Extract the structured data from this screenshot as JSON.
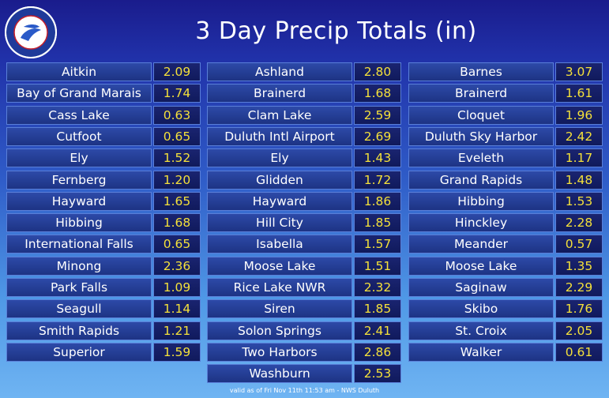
{
  "header": {
    "title": "3 Day Precip Totals (in)",
    "logo_text": "NATIONAL WEATHER SERVICE"
  },
  "columns": [
    [
      {
        "name": "Aitkin",
        "value": "2.09"
      },
      {
        "name": "Bay of Grand Marais",
        "value": "1.74"
      },
      {
        "name": "Cass Lake",
        "value": "0.63"
      },
      {
        "name": "Cutfoot",
        "value": "0.65"
      },
      {
        "name": "Ely",
        "value": "1.52"
      },
      {
        "name": "Fernberg",
        "value": "1.20"
      },
      {
        "name": "Hayward",
        "value": "1.65"
      },
      {
        "name": "Hibbing",
        "value": "1.68"
      },
      {
        "name": "International Falls",
        "value": "0.65"
      },
      {
        "name": "Minong",
        "value": "2.36"
      },
      {
        "name": "Park Falls",
        "value": "1.09"
      },
      {
        "name": "Seagull",
        "value": "1.14"
      },
      {
        "name": "Smith Rapids",
        "value": "1.21"
      },
      {
        "name": "Superior",
        "value": "1.59"
      }
    ],
    [
      {
        "name": "Ashland",
        "value": "2.80"
      },
      {
        "name": "Brainerd",
        "value": "1.68"
      },
      {
        "name": "Clam Lake",
        "value": "2.59"
      },
      {
        "name": "Duluth Intl Airport",
        "value": "2.69"
      },
      {
        "name": "Ely",
        "value": "1.43"
      },
      {
        "name": "Glidden",
        "value": "1.72"
      },
      {
        "name": "Hayward",
        "value": "1.86"
      },
      {
        "name": "Hill City",
        "value": "1.85"
      },
      {
        "name": "Isabella",
        "value": "1.57"
      },
      {
        "name": "Moose Lake",
        "value": "1.51"
      },
      {
        "name": "Rice Lake NWR",
        "value": "2.32"
      },
      {
        "name": "Siren",
        "value": "1.85"
      },
      {
        "name": "Solon Springs",
        "value": "2.41"
      },
      {
        "name": "Two Harbors",
        "value": "2.86"
      },
      {
        "name": "Washburn",
        "value": "2.53"
      }
    ],
    [
      {
        "name": "Barnes",
        "value": "3.07"
      },
      {
        "name": "Brainerd",
        "value": "1.61"
      },
      {
        "name": "Cloquet",
        "value": "1.96"
      },
      {
        "name": "Duluth Sky Harbor",
        "value": "2.42"
      },
      {
        "name": "Eveleth",
        "value": "1.17"
      },
      {
        "name": "Grand Rapids",
        "value": "1.48"
      },
      {
        "name": "Hibbing",
        "value": "1.53"
      },
      {
        "name": "Hinckley",
        "value": "2.28"
      },
      {
        "name": "Meander",
        "value": "0.57"
      },
      {
        "name": "Moose Lake",
        "value": "1.35"
      },
      {
        "name": "Saginaw",
        "value": "2.29"
      },
      {
        "name": "Skibo",
        "value": "1.76"
      },
      {
        "name": "St. Croix",
        "value": "2.05"
      },
      {
        "name": "Walker",
        "value": "0.61"
      }
    ]
  ],
  "footer": {
    "text": "valid as of Fri Nov 11th 11:53 am - NWS Duluth"
  }
}
